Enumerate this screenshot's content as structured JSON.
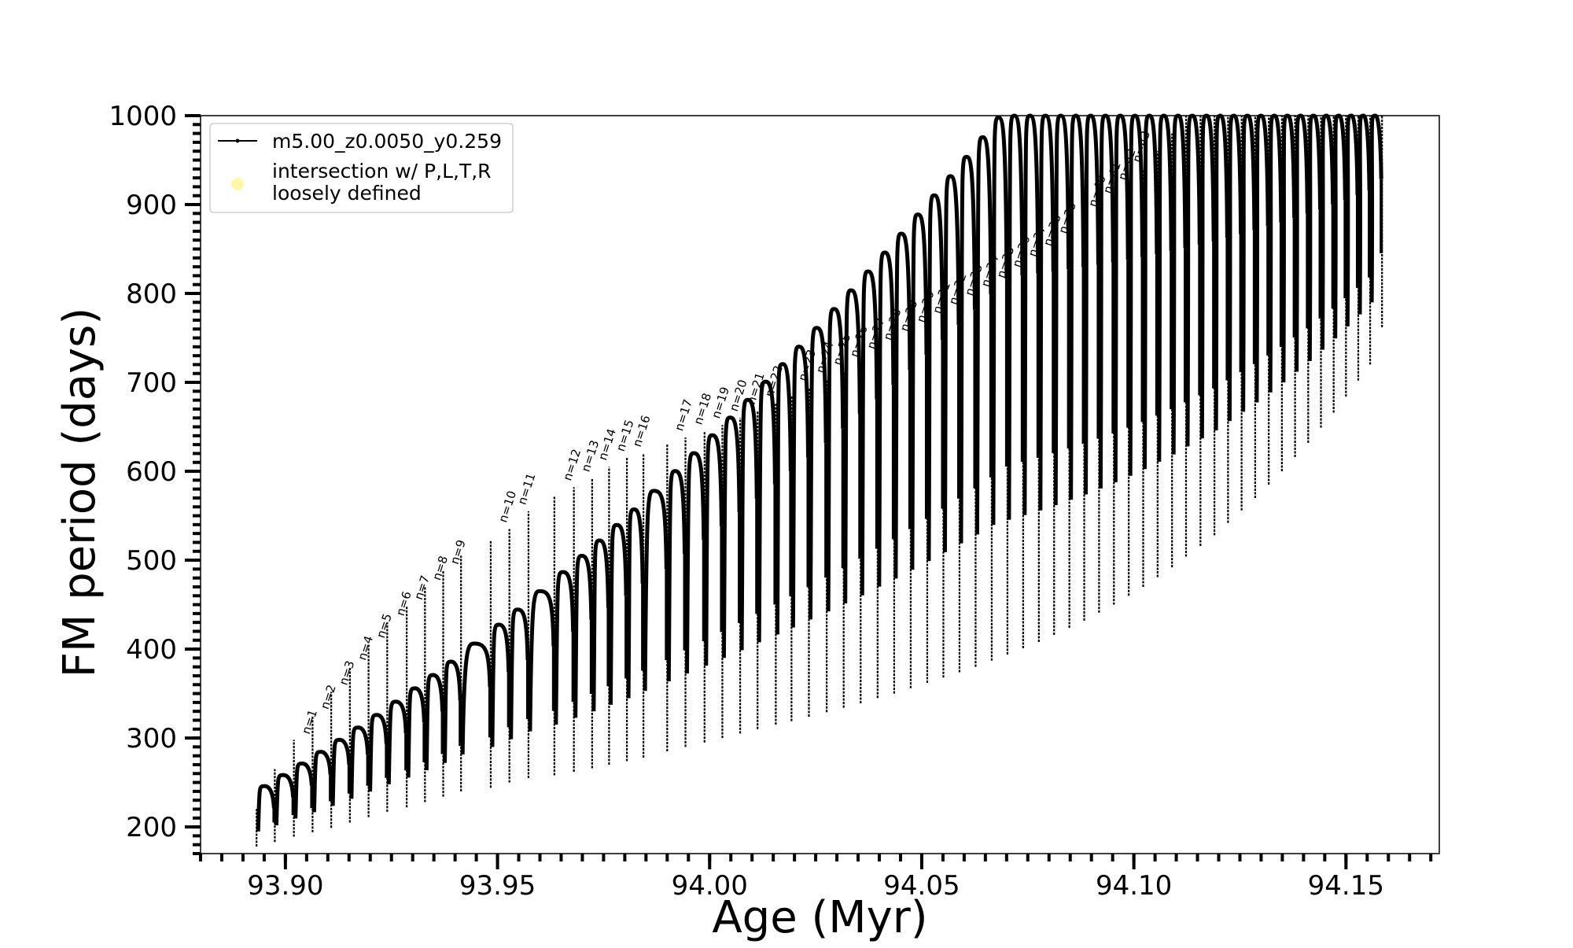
{
  "chart_data": {
    "type": "line",
    "xlabel": "Age (Myr)",
    "ylabel": "FM period (days)",
    "xlim": [
      93.88,
      94.172
    ],
    "ylim": [
      170,
      1000
    ],
    "x_ticks": [
      93.9,
      93.95,
      94.0,
      94.05,
      94.1,
      94.15
    ],
    "x_tick_labels": [
      "93.90",
      "93.95",
      "94.00",
      "94.05",
      "94.10",
      "94.15"
    ],
    "y_ticks": [
      200,
      300,
      400,
      500,
      600,
      700,
      800,
      900,
      1000
    ],
    "y_tick_labels": [
      "200",
      "300",
      "400",
      "500",
      "600",
      "700",
      "800",
      "900",
      "1000"
    ],
    "x_minor_step": 0.005,
    "y_minor_step": 10,
    "grid": false,
    "legend": {
      "placement": "top-left",
      "entries": [
        {
          "label": "m5.00_z0.0050_y0.259",
          "marker": "line-dot",
          "color": "#000000"
        },
        {
          "label_lines": [
            "intersection w/ P,L,T,R",
            "loosely defined"
          ],
          "marker": "circle",
          "color": "#fff6a8"
        }
      ]
    },
    "series": [
      {
        "name": "m5.00_z0.0050_y0.259",
        "color": "#000000",
        "description": "Thermal-pulse cycles: each pulse period spikes up then relaxes back",
        "pulses": [
          {
            "x": 93.8932,
            "peak": 220,
            "trough": 178,
            "cycle_top": 240
          },
          {
            "x": 93.8975,
            "peak": 265,
            "trough": 183
          },
          {
            "x": 93.902,
            "peak": 298,
            "trough": 189
          },
          {
            "x": 93.9064,
            "peak": 325,
            "trough": 194
          },
          {
            "x": 93.9108,
            "peak": 352,
            "trough": 199
          },
          {
            "x": 93.9152,
            "peak": 380,
            "trough": 205
          },
          {
            "x": 93.9196,
            "peak": 405,
            "trough": 211
          },
          {
            "x": 93.924,
            "peak": 430,
            "trough": 217
          },
          {
            "x": 93.9286,
            "peak": 448,
            "trough": 222
          },
          {
            "x": 93.9329,
            "peak": 470,
            "trough": 228
          },
          {
            "x": 93.9372,
            "peak": 488,
            "trough": 234
          },
          {
            "x": 93.9414,
            "peak": 505,
            "trough": 240
          },
          {
            "x": 93.9484,
            "peak": 522,
            "trough": 244
          },
          {
            "x": 93.9528,
            "peak": 535,
            "trough": 250
          },
          {
            "x": 93.9573,
            "peak": 555,
            "trough": 255
          },
          {
            "x": 93.9634,
            "peak": 572,
            "trough": 258
          },
          {
            "x": 93.968,
            "peak": 582,
            "trough": 262
          },
          {
            "x": 93.9723,
            "peak": 592,
            "trough": 266
          },
          {
            "x": 93.9763,
            "peak": 605,
            "trough": 270
          },
          {
            "x": 93.9805,
            "peak": 615,
            "trough": 274
          },
          {
            "x": 93.9844,
            "peak": 620,
            "trough": 278
          },
          {
            "x": 93.99,
            "peak": 630,
            "trough": 285
          },
          {
            "x": 93.9943,
            "peak": 638,
            "trough": 290
          },
          {
            "x": 93.9988,
            "peak": 645,
            "trough": 295
          },
          {
            "x": 94.003,
            "peak": 652,
            "trough": 300
          },
          {
            "x": 94.0072,
            "peak": 660,
            "trough": 305
          },
          {
            "x": 94.0113,
            "peak": 668,
            "trough": 310
          },
          {
            "x": 94.0156,
            "peak": 676,
            "trough": 315
          },
          {
            "x": 94.0193,
            "peak": 685,
            "trough": 319
          },
          {
            "x": 94.0234,
            "peak": 694,
            "trough": 324
          },
          {
            "x": 94.0276,
            "peak": 703,
            "trough": 329
          },
          {
            "x": 94.0316,
            "peak": 712,
            "trough": 334
          },
          {
            "x": 94.0356,
            "peak": 721,
            "trough": 339
          },
          {
            "x": 94.0396,
            "peak": 730,
            "trough": 345
          },
          {
            "x": 94.0435,
            "peak": 740,
            "trough": 350
          },
          {
            "x": 94.0474,
            "peak": 750,
            "trough": 356
          },
          {
            "x": 94.0513,
            "peak": 760,
            "trough": 362
          },
          {
            "x": 94.0551,
            "peak": 770,
            "trough": 368
          },
          {
            "x": 94.0589,
            "peak": 780,
            "trough": 374
          },
          {
            "x": 94.0627,
            "peak": 790,
            "trough": 380
          },
          {
            "x": 94.0665,
            "peak": 800,
            "trough": 387
          },
          {
            "x": 94.0702,
            "peak": 810,
            "trough": 394
          },
          {
            "x": 94.0739,
            "peak": 822,
            "trough": 401
          },
          {
            "x": 94.0776,
            "peak": 834,
            "trough": 408
          },
          {
            "x": 94.0812,
            "peak": 846,
            "trough": 416
          },
          {
            "x": 94.0848,
            "peak": 860,
            "trough": 424
          },
          {
            "x": 94.0883,
            "peak": 875,
            "trough": 432
          },
          {
            "x": 94.0918,
            "peak": 890,
            "trough": 441
          },
          {
            "x": 94.0953,
            "peak": 905,
            "trough": 450
          },
          {
            "x": 94.0988,
            "peak": 920,
            "trough": 460
          },
          {
            "x": 94.1022,
            "peak": 940,
            "trough": 470
          },
          {
            "x": 94.1056,
            "peak": 960,
            "trough": 481
          },
          {
            "x": 94.109,
            "peak": 980,
            "trough": 492
          },
          {
            "x": 94.1123,
            "peak": 1000,
            "trough": 504
          },
          {
            "x": 94.1157,
            "peak": 1000,
            "trough": 516
          },
          {
            "x": 94.119,
            "peak": 1000,
            "trough": 528
          },
          {
            "x": 94.1222,
            "peak": 1000,
            "trough": 542
          },
          {
            "x": 94.1254,
            "peak": 1000,
            "trough": 556
          },
          {
            "x": 94.1286,
            "peak": 1000,
            "trough": 570
          },
          {
            "x": 94.1318,
            "peak": 1000,
            "trough": 585
          },
          {
            "x": 94.1349,
            "peak": 1000,
            "trough": 600
          },
          {
            "x": 94.138,
            "peak": 1000,
            "trough": 616
          },
          {
            "x": 94.1411,
            "peak": 1000,
            "trough": 632
          },
          {
            "x": 94.1441,
            "peak": 1000,
            "trough": 649
          },
          {
            "x": 94.1471,
            "peak": 1000,
            "trough": 666
          },
          {
            "x": 94.15,
            "peak": 1000,
            "trough": 684
          },
          {
            "x": 94.1529,
            "peak": 1000,
            "trough": 702
          },
          {
            "x": 94.1557,
            "peak": 1000,
            "trough": 720
          },
          {
            "x": 94.1585,
            "peak": 1000,
            "trough": 762
          }
        ]
      }
    ],
    "annotations": [
      {
        "text": "n=1",
        "x": 93.9064,
        "y": 300
      },
      {
        "text": "n=2",
        "x": 93.9108,
        "y": 328
      },
      {
        "text": "n=3",
        "x": 93.9152,
        "y": 355
      },
      {
        "text": "n=4",
        "x": 93.9196,
        "y": 383
      },
      {
        "text": "n=5",
        "x": 93.924,
        "y": 408
      },
      {
        "text": "n=6",
        "x": 93.9286,
        "y": 433
      },
      {
        "text": "n=7",
        "x": 93.9329,
        "y": 451
      },
      {
        "text": "n=8",
        "x": 93.9372,
        "y": 473
      },
      {
        "text": "n=9",
        "x": 93.9414,
        "y": 491
      },
      {
        "text": "n=10",
        "x": 93.9528,
        "y": 538
      },
      {
        "text": "n=11",
        "x": 93.9573,
        "y": 558
      },
      {
        "text": "n=12",
        "x": 93.968,
        "y": 585
      },
      {
        "text": "n=13",
        "x": 93.9723,
        "y": 595
      },
      {
        "text": "n=14",
        "x": 93.9763,
        "y": 608
      },
      {
        "text": "n=15",
        "x": 93.9805,
        "y": 618
      },
      {
        "text": "n=16",
        "x": 93.9844,
        "y": 623
      },
      {
        "text": "n=17",
        "x": 93.9943,
        "y": 641
      },
      {
        "text": "n=18",
        "x": 93.9988,
        "y": 648
      },
      {
        "text": "n=19",
        "x": 94.003,
        "y": 655
      },
      {
        "text": "n=20",
        "x": 94.0072,
        "y": 663
      },
      {
        "text": "n=21",
        "x": 94.0113,
        "y": 671
      },
      {
        "text": "n=22",
        "x": 94.0156,
        "y": 679
      },
      {
        "text": "n=23",
        "x": 94.0234,
        "y": 697
      },
      {
        "text": "n=24",
        "x": 94.0276,
        "y": 706
      },
      {
        "text": "n=25",
        "x": 94.0316,
        "y": 715
      },
      {
        "text": "n=26",
        "x": 94.0356,
        "y": 724
      },
      {
        "text": "n=27",
        "x": 94.0396,
        "y": 733
      },
      {
        "text": "n=28",
        "x": 94.0435,
        "y": 743
      },
      {
        "text": "n=29",
        "x": 94.0474,
        "y": 753
      },
      {
        "text": "n=30",
        "x": 94.0513,
        "y": 763
      },
      {
        "text": "n=31",
        "x": 94.0551,
        "y": 773
      },
      {
        "text": "n=32",
        "x": 94.0589,
        "y": 783
      },
      {
        "text": "n=33",
        "x": 94.0627,
        "y": 793
      },
      {
        "text": "n=34",
        "x": 94.0665,
        "y": 803
      },
      {
        "text": "n=35",
        "x": 94.0702,
        "y": 813
      },
      {
        "text": "n=36",
        "x": 94.0739,
        "y": 825
      },
      {
        "text": "n=37",
        "x": 94.0776,
        "y": 837
      },
      {
        "text": "n=38",
        "x": 94.0812,
        "y": 849
      },
      {
        "text": "n=39",
        "x": 94.0848,
        "y": 863
      },
      {
        "text": "n=40",
        "x": 94.0918,
        "y": 893
      },
      {
        "text": "n=41",
        "x": 94.0953,
        "y": 908
      },
      {
        "text": "n=42",
        "x": 94.0988,
        "y": 923
      },
      {
        "text": "n=43",
        "x": 94.1022,
        "y": 943
      }
    ]
  }
}
